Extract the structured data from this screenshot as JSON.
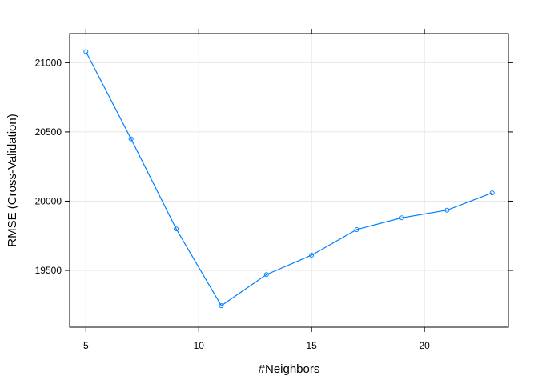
{
  "chart_data": {
    "type": "line",
    "title": "",
    "xlabel": "#Neighbors",
    "ylabel": "RMSE (Cross-Validation)",
    "xlim": [
      4.28,
      23.72
    ],
    "ylim": [
      19090,
      21210
    ],
    "xticks": [
      5,
      10,
      15,
      20
    ],
    "yticks": [
      19500,
      20000,
      20500,
      21000
    ],
    "grid": true,
    "series": [
      {
        "x": [
          5,
          7,
          9,
          11,
          13,
          15,
          17,
          19,
          21,
          23
        ],
        "y": [
          21080,
          20450,
          19800,
          19245,
          19470,
          19610,
          19795,
          19880,
          19935,
          20060
        ]
      }
    ],
    "colors": {
      "line": "#0080ff",
      "grid": "#e6e6e6",
      "frame": "#000000"
    }
  }
}
